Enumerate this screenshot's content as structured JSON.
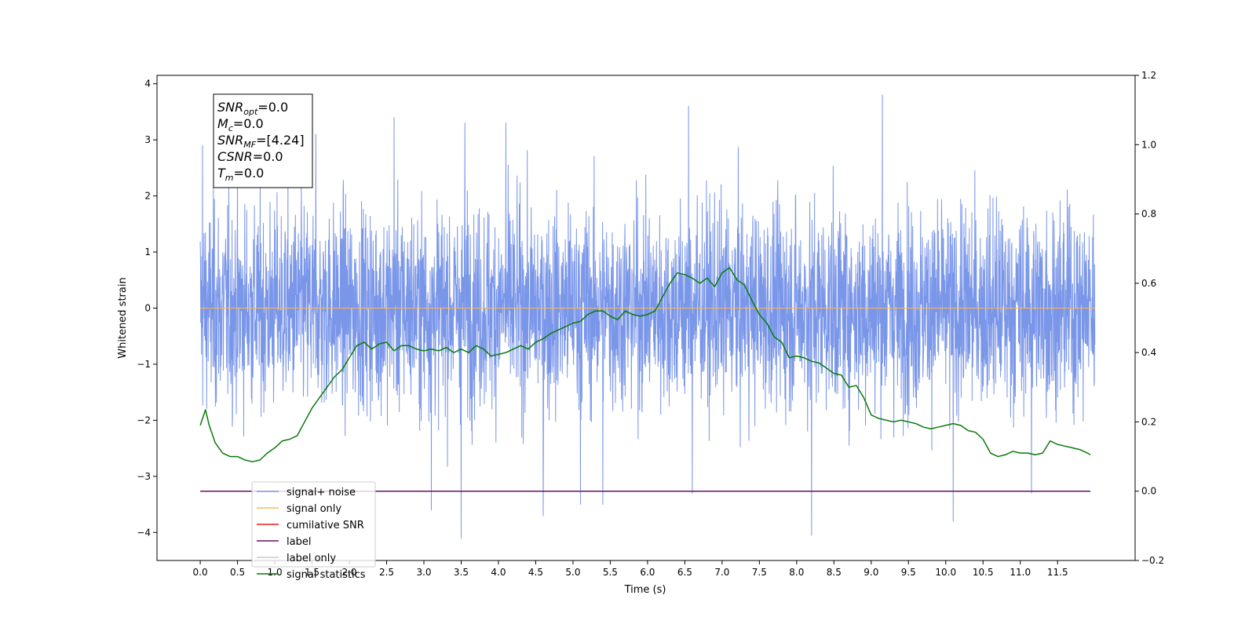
{
  "chart_data": {
    "type": "line",
    "xlabel": "Time (s)",
    "ylabel_left": "Whitened strain",
    "ylabel_right": "",
    "xlim": [
      -0.58,
      12.54
    ],
    "ylim_left": [
      -4.5,
      4.15
    ],
    "ylim_right": [
      -0.2,
      1.2
    ],
    "x_ticks": [
      0.0,
      0.5,
      1.0,
      1.5,
      2.0,
      2.5,
      3.0,
      3.5,
      4.0,
      4.5,
      5.0,
      5.5,
      6.0,
      6.5,
      7.0,
      7.5,
      8.0,
      8.5,
      9.0,
      9.5,
      10.0,
      10.5,
      11.0,
      11.5
    ],
    "x_tick_labels": [
      "0.0",
      "0.5",
      "1.0",
      "1.5",
      "2.0",
      "2.5",
      "3.0",
      "3.5",
      "4.0",
      "4.5",
      "5.0",
      "5.5",
      "6.0",
      "6.5",
      "7.0",
      "7.5",
      "8.0",
      "8.5",
      "9.0",
      "9.5",
      "10.0",
      "10.5",
      "11.0",
      "11.5"
    ],
    "y_left_ticks": [
      -4,
      -3,
      -2,
      -1,
      0,
      1,
      2,
      3,
      4
    ],
    "y_left_tick_labels": [
      "−4",
      "−3",
      "−2",
      "−1",
      "0",
      "1",
      "2",
      "3",
      "4"
    ],
    "y_right_ticks": [
      -0.2,
      0.0,
      0.2,
      0.4,
      0.6,
      0.8,
      1.0,
      1.2
    ],
    "y_right_tick_labels": [
      "−0.2",
      "0.0",
      "0.2",
      "0.4",
      "0.6",
      "0.8",
      "1.0",
      "1.2"
    ],
    "grid": false,
    "legend_position": "lower-left",
    "series": [
      {
        "name": "signal+ noise",
        "color": "#7a96e9",
        "axis": "left",
        "description": "dense Gaussian noise, roughly -2.5 to 2.5 with peaks to about +3.8 and -4.1",
        "x_range": [
          0.0,
          12.0
        ],
        "noise_std": 0.9,
        "extremes": [
          [
            0.03,
            2.9
          ],
          [
            1.55,
            3.1
          ],
          [
            2.6,
            3.4
          ],
          [
            3.55,
            3.3
          ],
          [
            4.1,
            3.3
          ],
          [
            6.55,
            3.6
          ],
          [
            6.6,
            -3.3
          ],
          [
            9.15,
            3.8
          ],
          [
            3.5,
            -4.1
          ],
          [
            8.2,
            -4.05
          ],
          [
            10.1,
            -3.8
          ],
          [
            3.1,
            -3.6
          ],
          [
            4.6,
            -3.7
          ],
          [
            5.1,
            -3.5
          ],
          [
            5.4,
            -3.5
          ],
          [
            11.15,
            -3.3
          ]
        ]
      },
      {
        "name": "signal only",
        "color": "#ffb74d",
        "axis": "left",
        "x": [
          0.0,
          12.0
        ],
        "y": [
          0.0,
          0.0
        ]
      },
      {
        "name": "cumilative SNR",
        "color": "#e41a1c",
        "axis": "left",
        "x": [],
        "y": []
      },
      {
        "name": "label",
        "color": "#6a0d6a",
        "axis": "right",
        "x": [
          0.0,
          11.94
        ],
        "y": [
          0.0,
          0.0
        ]
      },
      {
        "name": "label only",
        "color": "#cccccc",
        "axis": "right",
        "x": [],
        "y": []
      },
      {
        "name": "signal statistics",
        "color": "#0a7a0a",
        "axis": "right",
        "x": [
          0.0,
          0.07,
          0.12,
          0.2,
          0.3,
          0.4,
          0.5,
          0.6,
          0.7,
          0.8,
          0.9,
          1.0,
          1.1,
          1.2,
          1.3,
          1.4,
          1.5,
          1.6,
          1.7,
          1.8,
          1.9,
          2.0,
          2.1,
          2.2,
          2.3,
          2.4,
          2.5,
          2.6,
          2.7,
          2.8,
          2.9,
          3.0,
          3.1,
          3.2,
          3.3,
          3.4,
          3.5,
          3.6,
          3.7,
          3.8,
          3.9,
          4.0,
          4.1,
          4.2,
          4.3,
          4.4,
          4.5,
          4.6,
          4.7,
          4.8,
          4.9,
          5.0,
          5.1,
          5.2,
          5.3,
          5.4,
          5.5,
          5.6,
          5.7,
          5.8,
          5.9,
          6.0,
          6.1,
          6.2,
          6.3,
          6.4,
          6.5,
          6.6,
          6.7,
          6.8,
          6.9,
          7.0,
          7.1,
          7.2,
          7.3,
          7.4,
          7.5,
          7.6,
          7.7,
          7.8,
          7.9,
          8.0,
          8.1,
          8.2,
          8.3,
          8.4,
          8.5,
          8.6,
          8.7,
          8.8,
          8.9,
          9.0,
          9.1,
          9.2,
          9.3,
          9.4,
          9.5,
          9.6,
          9.7,
          9.8,
          9.9,
          10.0,
          10.1,
          10.2,
          10.3,
          10.4,
          10.5,
          10.6,
          10.7,
          10.8,
          10.9,
          11.0,
          11.1,
          11.2,
          11.3,
          11.4,
          11.5,
          11.6,
          11.7,
          11.8,
          11.9,
          11.94
        ],
        "y": [
          0.19,
          0.235,
          0.19,
          0.14,
          0.11,
          0.1,
          0.1,
          0.09,
          0.085,
          0.09,
          0.11,
          0.125,
          0.145,
          0.15,
          0.16,
          0.2,
          0.24,
          0.27,
          0.3,
          0.33,
          0.35,
          0.385,
          0.42,
          0.43,
          0.41,
          0.425,
          0.43,
          0.405,
          0.42,
          0.42,
          0.41,
          0.405,
          0.41,
          0.405,
          0.415,
          0.4,
          0.41,
          0.4,
          0.42,
          0.41,
          0.39,
          0.395,
          0.4,
          0.41,
          0.42,
          0.41,
          0.43,
          0.44,
          0.455,
          0.465,
          0.475,
          0.485,
          0.49,
          0.51,
          0.52,
          0.52,
          0.505,
          0.495,
          0.52,
          0.51,
          0.505,
          0.51,
          0.52,
          0.56,
          0.6,
          0.63,
          0.625,
          0.615,
          0.6,
          0.615,
          0.59,
          0.63,
          0.645,
          0.61,
          0.595,
          0.55,
          0.51,
          0.485,
          0.445,
          0.43,
          0.385,
          0.39,
          0.385,
          0.375,
          0.37,
          0.355,
          0.34,
          0.335,
          0.3,
          0.305,
          0.27,
          0.22,
          0.21,
          0.205,
          0.2,
          0.205,
          0.2,
          0.195,
          0.185,
          0.18,
          0.185,
          0.19,
          0.195,
          0.19,
          0.175,
          0.17,
          0.15,
          0.11,
          0.1,
          0.105,
          0.115,
          0.11,
          0.11,
          0.105,
          0.11,
          0.145,
          0.135,
          0.13,
          0.125,
          0.12,
          0.11,
          0.105
        ]
      }
    ],
    "legend": [
      "signal+ noise",
      "signal only",
      "cumilative SNR",
      "label",
      "label only",
      "signal statistics"
    ],
    "annotation_box": {
      "lines": [
        {
          "base": "SNR",
          "sub": "opt",
          "value": "=0.0"
        },
        {
          "base": "M",
          "sub": "c",
          "value": "=0.0"
        },
        {
          "base": "SNR",
          "sub": "MF",
          "value": "=[4.24]"
        },
        {
          "base": "CSNR",
          "sub": "",
          "value": "=0.0"
        },
        {
          "base": "T",
          "sub": "m",
          "value": "=0.0"
        }
      ]
    }
  }
}
